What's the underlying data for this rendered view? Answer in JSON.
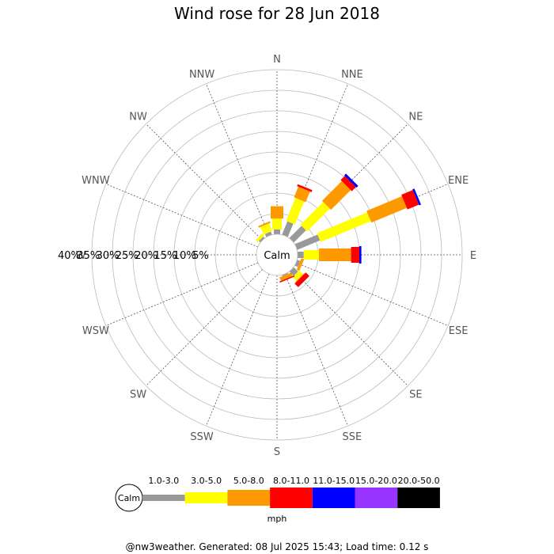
{
  "chart_data": {
    "type": "wind-rose",
    "title": "Wind rose for 28 Jun 2018",
    "directions": [
      "N",
      "NNE",
      "NE",
      "ENE",
      "E",
      "ESE",
      "SE",
      "SSE",
      "S",
      "SSW",
      "SW",
      "WSW",
      "W",
      "WNW",
      "NW",
      "NNW"
    ],
    "ring_labels": [
      "40%",
      "35%",
      "30%",
      "25%",
      "20%",
      "15%",
      "10%",
      "5%"
    ],
    "ring_percent_values": [
      5,
      10,
      15,
      20,
      25,
      30,
      35,
      40
    ],
    "calm_label": "Calm",
    "speed_bins": [
      {
        "label": "1.0-3.0",
        "color": "#999999"
      },
      {
        "label": "3.0-5.0",
        "color": "#ffff00"
      },
      {
        "label": "5.0-8.0",
        "color": "#ff9900"
      },
      {
        "label": "8.0-11.0",
        "color": "#ff0000"
      },
      {
        "label": "11.0-15.0",
        "color": "#0000ff"
      },
      {
        "label": "15.0-20.0",
        "color": "#9933ff"
      },
      {
        "label": "20.0-50.0",
        "color": "#000000"
      }
    ],
    "units": "mph",
    "cumulative_percent_by_direction": {
      "N": [
        1.2,
        3.8,
        6.8,
        6.8,
        6.8,
        6.8,
        6.8
      ],
      "NNE": [
        3.5,
        9.5,
        12.3,
        12.8,
        12.8,
        12.8,
        12.8
      ],
      "NE": [
        4.2,
        12.0,
        18.8,
        20.2,
        20.8,
        20.8,
        20.8
      ],
      "ENE": [
        6.0,
        19.2,
        28.5,
        31.5,
        32.0,
        32.0,
        32.0
      ],
      "E": [
        1.5,
        5.2,
        13.0,
        15.0,
        15.5,
        15.5,
        15.5
      ],
      "ESE": [
        0.8,
        0.8,
        1.5,
        1.5,
        1.5,
        1.5,
        1.5
      ],
      "SE": [
        1.5,
        2.8,
        3.0,
        4.2,
        4.2,
        4.2,
        4.2
      ],
      "SSE": [
        0.3,
        0.3,
        1.2,
        1.5,
        1.5,
        1.5,
        1.5
      ],
      "S": [
        0,
        0,
        0,
        0,
        0,
        0,
        0
      ],
      "SSW": [
        0,
        0,
        0,
        0,
        0,
        0,
        0
      ],
      "SW": [
        0,
        0,
        0,
        0,
        0,
        0,
        0
      ],
      "WSW": [
        0,
        0,
        0,
        0,
        0,
        0,
        0
      ],
      "W": [
        0,
        0,
        0,
        0,
        0,
        0,
        0
      ],
      "WNW": [
        0,
        0,
        0,
        0,
        0,
        0,
        0
      ],
      "NW": [
        0.5,
        1.2,
        1.2,
        1.2,
        1.2,
        1.2,
        1.2
      ],
      "NNW": [
        0.8,
        2.8,
        3.2,
        3.2,
        3.2,
        3.2,
        3.2
      ]
    },
    "grid": true
  },
  "footer": "@nw3weather. Generated: 08 Jul 2025 15:43; Load time: 0.12 s"
}
